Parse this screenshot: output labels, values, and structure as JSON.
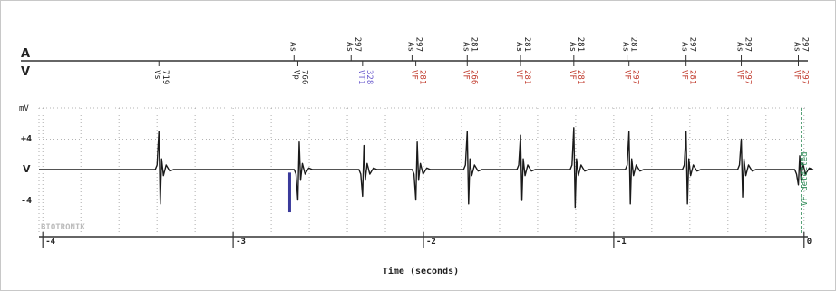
{
  "chart_data": {
    "type": "line",
    "title": "",
    "xlabel": "Time (seconds)",
    "ylabel": "mV",
    "xlim": [
      -4.02,
      0.02
    ],
    "ylim": [
      -6,
      8
    ],
    "x_ticks": [
      "-4",
      "-3",
      "-2",
      "-1",
      "0"
    ],
    "y_ticks": [
      "+4",
      "V",
      "-4"
    ],
    "grid": "dotted",
    "brand": "BIOTRONIK",
    "colors": {
      "trace": "#1a1a1a",
      "axis": "#333333",
      "vf_marker": "#c0392b",
      "vt1_marker": "#6a5acd",
      "pace_spike": "#3a3a9a",
      "detected_line": "#2e8b57"
    },
    "atrial_channel": {
      "label": "A",
      "markers": [
        {
          "t": -2.68,
          "type": "As",
          "interval": ""
        },
        {
          "t": -2.38,
          "type": "As",
          "interval": "297"
        },
        {
          "t": -2.06,
          "type": "As",
          "interval": "297"
        },
        {
          "t": -1.77,
          "type": "As",
          "interval": "281"
        },
        {
          "t": -1.49,
          "type": "As",
          "interval": "281"
        },
        {
          "t": -1.21,
          "type": "As",
          "interval": "281"
        },
        {
          "t": -0.93,
          "type": "As",
          "interval": "281"
        },
        {
          "t": -0.62,
          "type": "As",
          "interval": "297"
        },
        {
          "t": -0.33,
          "type": "As",
          "interval": "297"
        },
        {
          "t": -0.03,
          "type": "As",
          "interval": "297"
        }
      ]
    },
    "ventricular_channel": {
      "label": "V",
      "markers": [
        {
          "t": -3.39,
          "type": "Vs",
          "interval": "719",
          "class": "normal"
        },
        {
          "t": -2.66,
          "type": "Vp",
          "interval": "766",
          "class": "normal"
        },
        {
          "t": -2.32,
          "type": "VT1",
          "interval": "328",
          "class": "vt1"
        },
        {
          "t": -2.04,
          "type": "VF",
          "interval": "281",
          "class": "vf"
        },
        {
          "t": -1.77,
          "type": "VF",
          "interval": "266",
          "class": "vf"
        },
        {
          "t": -1.49,
          "type": "VF",
          "interval": "281",
          "class": "vf"
        },
        {
          "t": -1.21,
          "type": "VF",
          "interval": "281",
          "class": "vf"
        },
        {
          "t": -0.92,
          "type": "VF",
          "interval": "297",
          "class": "vf"
        },
        {
          "t": -0.62,
          "type": "VF",
          "interval": "281",
          "class": "vf"
        },
        {
          "t": -0.33,
          "type": "VF",
          "interval": "297",
          "class": "vf"
        },
        {
          "t": -0.03,
          "type": "VF",
          "interval": "297",
          "class": "vf"
        }
      ]
    },
    "complexes": [
      {
        "t": -3.39,
        "amp": 5,
        "polarity": 1,
        "paced": false
      },
      {
        "t": -2.66,
        "amp": 4,
        "polarity": -1,
        "paced": true
      },
      {
        "t": -2.32,
        "amp": 3.5,
        "polarity": -1,
        "paced": false
      },
      {
        "t": -2.04,
        "amp": 4,
        "polarity": -1,
        "paced": false
      },
      {
        "t": -1.77,
        "amp": 5,
        "polarity": 1,
        "paced": false
      },
      {
        "t": -1.49,
        "amp": 4.5,
        "polarity": 1,
        "paced": false
      },
      {
        "t": -1.21,
        "amp": 5.5,
        "polarity": 1,
        "paced": false
      },
      {
        "t": -0.92,
        "amp": 5,
        "polarity": 1,
        "paced": false
      },
      {
        "t": -0.62,
        "amp": 5,
        "polarity": 1,
        "paced": false
      },
      {
        "t": -0.33,
        "amp": 4,
        "polarity": 1,
        "paced": false
      },
      {
        "t": -0.03,
        "amp": 2,
        "polarity": -1,
        "paced": false
      }
    ],
    "annotations": [
      {
        "t": 0.0,
        "text": "VF detected"
      }
    ]
  }
}
